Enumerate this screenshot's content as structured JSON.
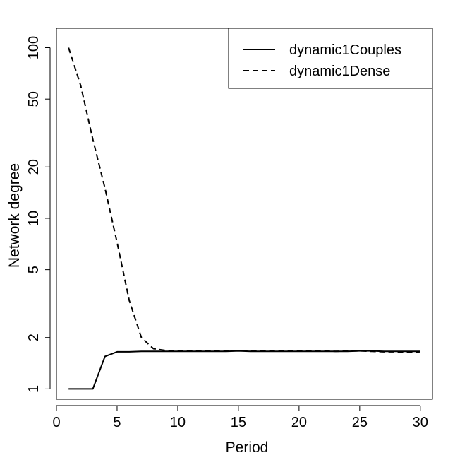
{
  "chart_data": {
    "type": "line",
    "title": "",
    "xlabel": "Period",
    "ylabel": "Network degree",
    "y_scale": "log",
    "xlim": [
      0,
      31
    ],
    "ylim": [
      0.87,
      130
    ],
    "x_ticks": [
      0,
      5,
      10,
      15,
      20,
      25,
      30
    ],
    "y_ticks": [
      1,
      2,
      5,
      10,
      20,
      50,
      100
    ],
    "grid": false,
    "legend_position": "top-right",
    "x": [
      1,
      2,
      3,
      4,
      5,
      6,
      7,
      8,
      9,
      10,
      11,
      12,
      13,
      14,
      15,
      16,
      17,
      18,
      19,
      20,
      21,
      22,
      23,
      24,
      25,
      26,
      27,
      28,
      29,
      30
    ],
    "series": [
      {
        "name": "dynamic1Couples",
        "line_style": "solid",
        "color": "#000000",
        "values": [
          1.0,
          1.0,
          1.0,
          1.55,
          1.65,
          1.65,
          1.66,
          1.66,
          1.66,
          1.66,
          1.66,
          1.66,
          1.66,
          1.66,
          1.67,
          1.66,
          1.66,
          1.66,
          1.66,
          1.66,
          1.66,
          1.66,
          1.66,
          1.66,
          1.67,
          1.67,
          1.66,
          1.66,
          1.66,
          1.66
        ]
      },
      {
        "name": "dynamic1Dense",
        "line_style": "dashed",
        "color": "#000000",
        "values": [
          100,
          60,
          29,
          15,
          7.2,
          3.3,
          2.0,
          1.72,
          1.68,
          1.68,
          1.67,
          1.67,
          1.67,
          1.67,
          1.68,
          1.67,
          1.67,
          1.68,
          1.68,
          1.67,
          1.67,
          1.67,
          1.66,
          1.67,
          1.67,
          1.66,
          1.65,
          1.65,
          1.64,
          1.65
        ]
      }
    ]
  }
}
